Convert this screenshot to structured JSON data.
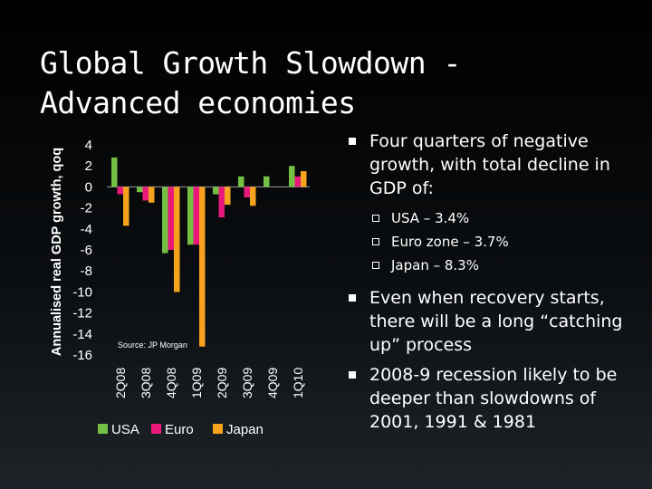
{
  "slide": {
    "title_line1": "Global Growth Slowdown -",
    "title_line2": "Advanced economies",
    "bullets": [
      {
        "text": "Four quarters of negative growth, with total decline in GDP of:",
        "subs": [
          "USA – 3.4%",
          "Euro zone – 3.7%",
          "Japan – 8.3%"
        ]
      },
      {
        "text": "Even when recovery starts, there will be a long “catching up” process",
        "subs": []
      },
      {
        "text": "2008-9 recession likely to be deeper than slowdowns of 2001, 1991 & 1981",
        "subs": []
      }
    ]
  },
  "chart_data": {
    "type": "bar",
    "title": "",
    "xlabel": "",
    "ylabel": "Annualised real GDP growth, qoq",
    "ylim": [
      -16,
      4
    ],
    "yticks": [
      4,
      2,
      0,
      -2,
      -4,
      -6,
      -8,
      -10,
      -12,
      -14,
      -16
    ],
    "categories": [
      "2Q08",
      "3Q08",
      "4Q08",
      "1Q09",
      "2Q09",
      "3Q09",
      "4Q09",
      "1Q10"
    ],
    "series": [
      {
        "name": "USA",
        "color": "#74c043",
        "values": [
          2.8,
          -0.5,
          -6.3,
          -5.5,
          -0.7,
          1.0,
          1.0,
          2.0
        ]
      },
      {
        "name": "Euro",
        "color": "#e8197a",
        "values": [
          -0.7,
          -1.3,
          -6.0,
          -5.5,
          -2.9,
          -1.0,
          0.0,
          1.0
        ]
      },
      {
        "name": "Japan",
        "color": "#f6a21d",
        "values": [
          -3.7,
          -1.5,
          -10.0,
          -15.2,
          -1.7,
          -1.8,
          0.0,
          1.5
        ]
      }
    ],
    "source": "Source: JP Morgan"
  }
}
